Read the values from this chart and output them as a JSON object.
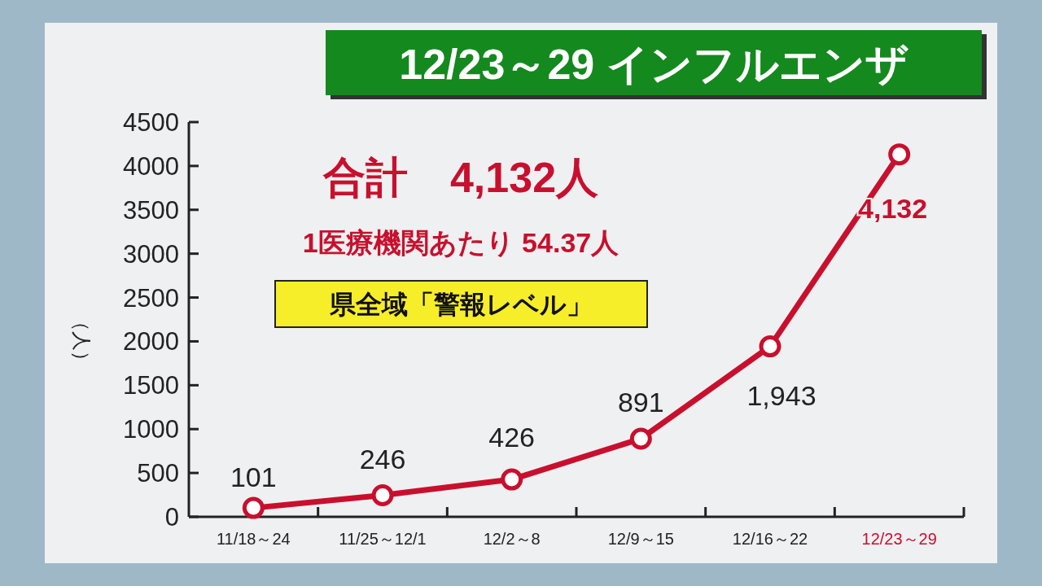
{
  "chart_data": {
    "type": "line",
    "title": "12/23～29 インフルエンザ",
    "ylabel": "（人）",
    "categories": [
      "11/18～24",
      "11/25～12/1",
      "12/2～8",
      "12/9～15",
      "12/16～22",
      "12/23～29"
    ],
    "series": [
      {
        "color": "#c8102e",
        "values": [
          101,
          246,
          426,
          891,
          1943,
          4132
        ],
        "value_labels": [
          "101",
          "246",
          "426",
          "891",
          "1,943",
          "4,132"
        ]
      }
    ],
    "ylim": [
      0,
      4500
    ],
    "yticks": [
      0,
      500,
      1000,
      1500,
      2000,
      2500,
      3000,
      3500,
      4000,
      4500
    ],
    "grid": false,
    "marker": "circle",
    "line_style": "solid",
    "annotations": [
      "合計　4,132人",
      "1医療機関あたり 54.37人",
      "県全域「警報レベル」"
    ]
  }
}
